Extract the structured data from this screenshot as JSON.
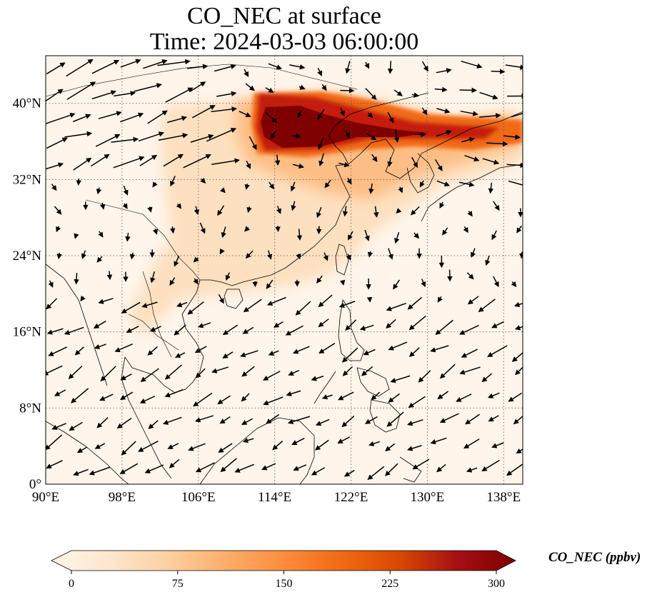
{
  "map": {
    "title_line1": "CO_NEC at surface",
    "title_line2": "Time: 2024-03-03 06:00:00",
    "variable": "CO_NEC",
    "level": "surface",
    "time": "2024-03-03 06:00:00",
    "extent": {
      "lon_min": 90,
      "lon_max": 140,
      "lat_min": 0,
      "lat_max": 45
    },
    "lon_ticks": [
      {
        "value": 90,
        "label": "90°E"
      },
      {
        "value": 98,
        "label": "98°E"
      },
      {
        "value": 106,
        "label": "106°E"
      },
      {
        "value": 114,
        "label": "114°E"
      },
      {
        "value": 122,
        "label": "122°E"
      },
      {
        "value": 130,
        "label": "130°E"
      },
      {
        "value": 138,
        "label": "138°E"
      }
    ],
    "lat_ticks": [
      {
        "value": 0,
        "label": "0°"
      },
      {
        "value": 8,
        "label": "8°N"
      },
      {
        "value": 16,
        "label": "16°N"
      },
      {
        "value": 24,
        "label": "24°N"
      },
      {
        "value": 32,
        "label": "32°N"
      },
      {
        "value": 40,
        "label": "40°N"
      }
    ],
    "gridlines": true,
    "background_color": "#fff5eb",
    "colormap": "OrRd-like",
    "plume_colors": {
      "faint": "#fde0bf",
      "light": "#fdbe85",
      "medium": "#f16913",
      "strong": "#c61a09",
      "peak": "#7f0000"
    }
  },
  "colorbar": {
    "title": "CO_NEC (ppbv)",
    "vmin": 0,
    "vmax": 300,
    "extend": "both",
    "ticks": [
      {
        "value": 0,
        "label": "0"
      },
      {
        "value": 75,
        "label": "75"
      },
      {
        "value": 150,
        "label": "150"
      },
      {
        "value": 225,
        "label": "225"
      },
      {
        "value": 300,
        "label": "300"
      }
    ],
    "stops": [
      "#fff5eb",
      "#fee6ce",
      "#fdd0a2",
      "#fdae6b",
      "#fd8d3c",
      "#f16913",
      "#d94801",
      "#a50f15",
      "#7f0000"
    ]
  }
}
